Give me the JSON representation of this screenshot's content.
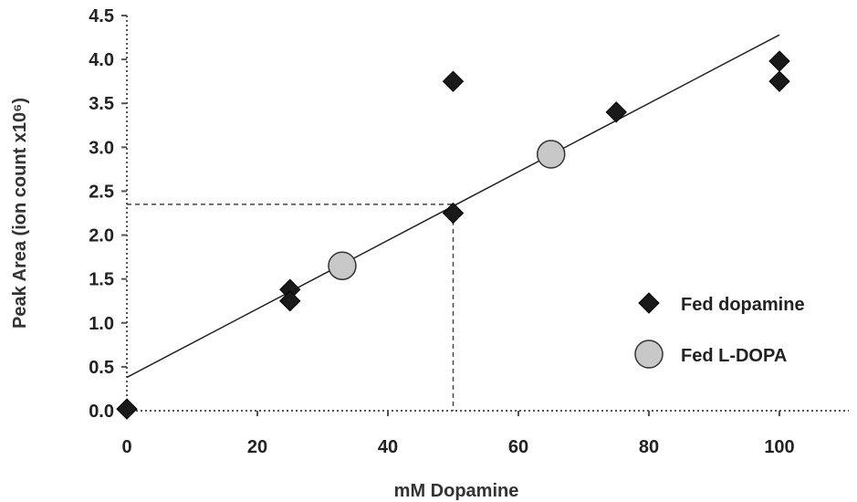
{
  "chart_data": {
    "type": "scatter",
    "xlabel": "mM Dopamine",
    "ylabel": "Peak Area (ion count x10⁶)",
    "xlim": [
      0,
      110
    ],
    "ylim": [
      0,
      4.5
    ],
    "xticks": [
      0,
      20,
      40,
      60,
      80,
      100
    ],
    "xtick_labels": [
      "0",
      "20",
      "40",
      "60",
      "80",
      "100"
    ],
    "yticks": [
      0,
      0.5,
      1.0,
      1.5,
      2.0,
      2.5,
      3.0,
      3.5,
      4.0,
      4.5
    ],
    "ytick_labels": [
      "0.0",
      "0.5",
      "1.0",
      "1.5",
      "2.0",
      "2.5",
      "3.0",
      "3.5",
      "4.0",
      "4.5"
    ],
    "grid": false,
    "legend_position": "bottom-right",
    "series": [
      {
        "name": "Fed dopamine",
        "marker": "diamond",
        "color": "#1a1a1a",
        "x": [
          0,
          25,
          25,
          50,
          50,
          75,
          100,
          100
        ],
        "y": [
          0.02,
          1.38,
          1.25,
          2.25,
          3.75,
          3.4,
          3.98,
          3.75
        ]
      },
      {
        "name": "Fed L-DOPA",
        "marker": "circle",
        "color": "#c8c8c8",
        "x": [
          33,
          65
        ],
        "y": [
          1.65,
          2.92
        ]
      }
    ],
    "trendline": {
      "x": [
        0,
        100
      ],
      "y": [
        0.38,
        4.28
      ]
    },
    "reference_lines": {
      "x": 50,
      "y": 2.35
    }
  }
}
